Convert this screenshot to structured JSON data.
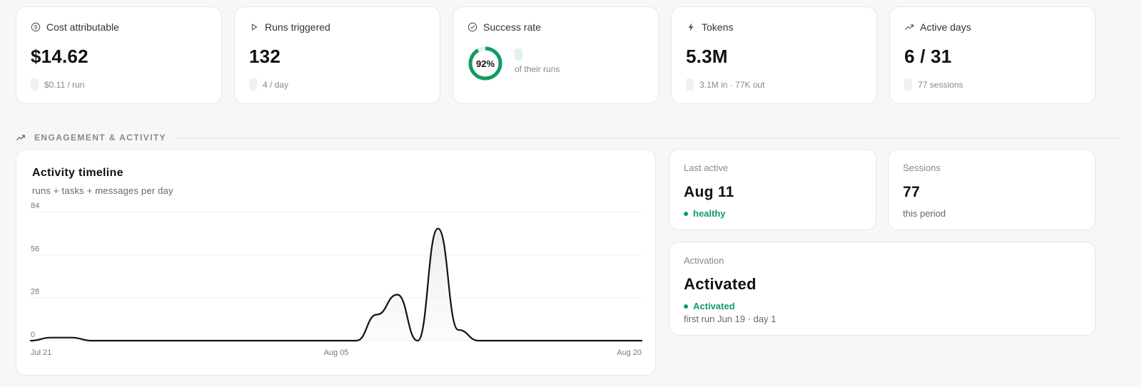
{
  "stats": [
    {
      "label": "Cost attributable",
      "icon": "dollar-circle-icon",
      "value": "$14.62",
      "sub": "$0.11 / run"
    },
    {
      "label": "Runs triggered",
      "icon": "play-icon",
      "value": "132",
      "sub": "4 / day"
    },
    {
      "label": "Success rate",
      "icon": "check-circle-icon",
      "value": "92%",
      "percent": 92,
      "sub": "of their runs"
    },
    {
      "label": "Tokens",
      "icon": "lightning-icon",
      "value": "5.3M",
      "sub": "3.1M in · 77K out"
    },
    {
      "label": "Active days",
      "icon": "trend-icon",
      "value": "6 / 31",
      "sub": "77 sessions"
    }
  ],
  "section": {
    "title": "ENGAGEMENT & ACTIVITY",
    "icon": "trend-icon"
  },
  "chart": {
    "title": "Activity timeline",
    "subtitle": "runs + tasks + messages per day"
  },
  "chart_data": {
    "type": "line",
    "title": "Activity timeline",
    "subtitle": "runs + tasks + messages per day",
    "x": [
      "Jul 21",
      "Jul 22",
      "Jul 23",
      "Jul 24",
      "Jul 25",
      "Jul 26",
      "Jul 27",
      "Jul 28",
      "Jul 29",
      "Jul 30",
      "Jul 31",
      "Aug 01",
      "Aug 02",
      "Aug 03",
      "Aug 04",
      "Aug 05",
      "Aug 06",
      "Aug 07",
      "Aug 08",
      "Aug 09",
      "Aug 10",
      "Aug 11",
      "Aug 12",
      "Aug 13",
      "Aug 14",
      "Aug 15",
      "Aug 16",
      "Aug 17",
      "Aug 18",
      "Aug 19",
      "Aug 20"
    ],
    "series": [
      {
        "values": [
          0,
          2,
          2,
          0,
          0,
          0,
          0,
          0,
          0,
          0,
          0,
          0,
          0,
          0,
          0,
          0,
          0,
          17,
          30,
          0,
          73,
          7,
          0,
          0,
          0,
          0,
          0,
          0,
          0,
          0,
          0
        ]
      }
    ],
    "x_tick_labels": [
      "Jul 21",
      "Aug 05",
      "Aug 20"
    ],
    "y_ticks": [
      0,
      28,
      56,
      84
    ],
    "ylim": [
      0,
      84
    ],
    "grid": true,
    "colors": {
      "line": "#111111",
      "area": "#eeeeee"
    }
  },
  "last_active": {
    "label": "Last active",
    "value": "Aug 11",
    "status": "healthy"
  },
  "sessions": {
    "label": "Sessions",
    "value": "77",
    "sub": "this period"
  },
  "activation": {
    "label": "Activation",
    "value": "Activated",
    "status": "Activated",
    "sub": "first run Jun 19 · day 1"
  },
  "colors": {
    "accent": "#139a62",
    "border": "#e6e6e6",
    "background": "#f7f7f7"
  }
}
